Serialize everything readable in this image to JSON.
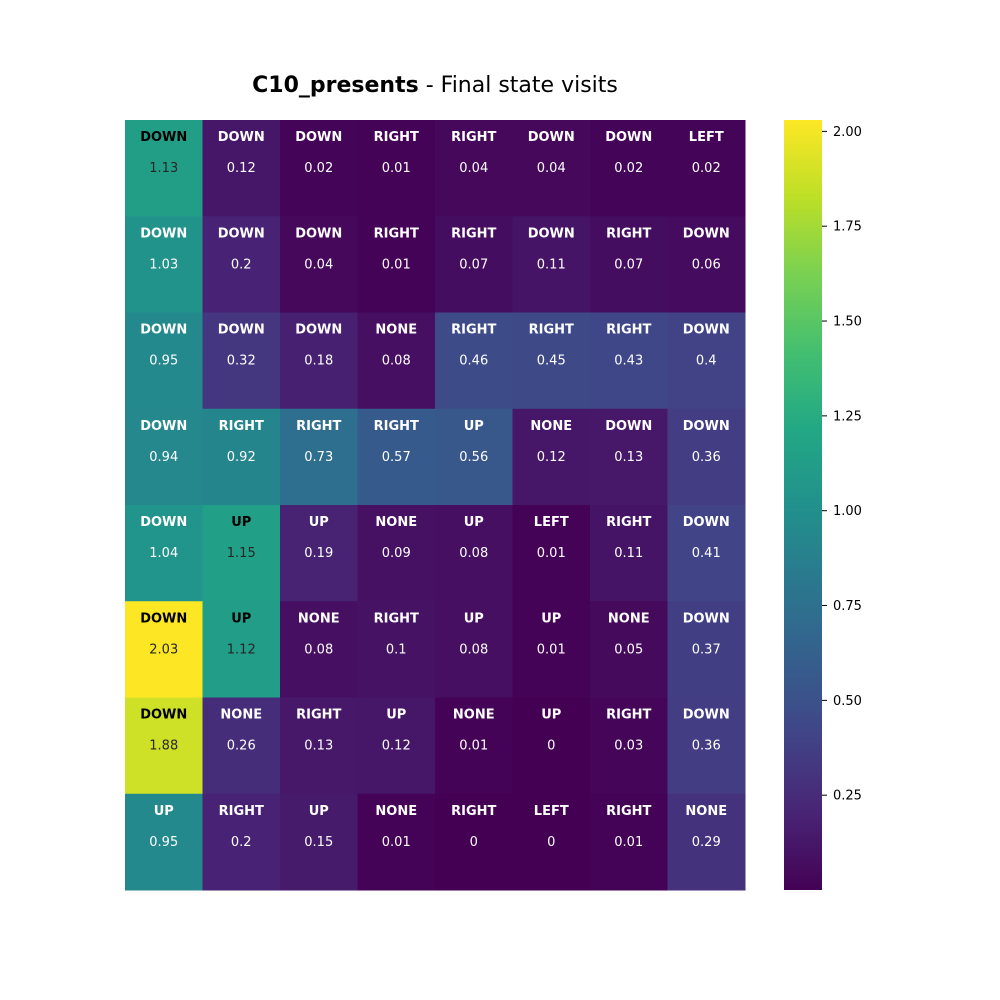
{
  "chart_data": {
    "type": "heatmap",
    "title_bold": "C10_presents",
    "title_rest": " - Final state visits",
    "rows": 8,
    "cols": 8,
    "values": [
      [
        1.13,
        0.12,
        0.02,
        0.01,
        0.04,
        0.04,
        0.02,
        0.02
      ],
      [
        1.03,
        0.2,
        0.04,
        0.01,
        0.07,
        0.11,
        0.07,
        0.06
      ],
      [
        0.95,
        0.32,
        0.18,
        0.08,
        0.46,
        0.45,
        0.43,
        0.4
      ],
      [
        0.94,
        0.92,
        0.73,
        0.57,
        0.56,
        0.12,
        0.13,
        0.36
      ],
      [
        1.04,
        1.15,
        0.19,
        0.09,
        0.08,
        0.01,
        0.11,
        0.41
      ],
      [
        2.03,
        1.12,
        0.08,
        0.1,
        0.08,
        0.01,
        0.05,
        0.37
      ],
      [
        1.88,
        0.26,
        0.13,
        0.12,
        0.01,
        0,
        0.03,
        0.36
      ],
      [
        0.95,
        0.2,
        0.15,
        0.01,
        0,
        0,
        0.01,
        0.29
      ]
    ],
    "actions": [
      [
        "DOWN",
        "DOWN",
        "DOWN",
        "RIGHT",
        "RIGHT",
        "DOWN",
        "DOWN",
        "LEFT"
      ],
      [
        "DOWN",
        "DOWN",
        "DOWN",
        "RIGHT",
        "RIGHT",
        "DOWN",
        "RIGHT",
        "DOWN"
      ],
      [
        "DOWN",
        "DOWN",
        "DOWN",
        "NONE",
        "RIGHT",
        "RIGHT",
        "RIGHT",
        "DOWN"
      ],
      [
        "DOWN",
        "RIGHT",
        "RIGHT",
        "RIGHT",
        "UP",
        "NONE",
        "DOWN",
        "DOWN"
      ],
      [
        "DOWN",
        "UP",
        "UP",
        "NONE",
        "UP",
        "LEFT",
        "RIGHT",
        "DOWN"
      ],
      [
        "DOWN",
        "UP",
        "NONE",
        "RIGHT",
        "UP",
        "UP",
        "NONE",
        "DOWN"
      ],
      [
        "DOWN",
        "NONE",
        "RIGHT",
        "UP",
        "NONE",
        "UP",
        "RIGHT",
        "DOWN"
      ],
      [
        "UP",
        "RIGHT",
        "UP",
        "NONE",
        "RIGHT",
        "LEFT",
        "RIGHT",
        "NONE"
      ]
    ],
    "colormap": "viridis",
    "vmin": 0,
    "vmax": 2.03,
    "colorbar_ticks": [
      0.25,
      0.5,
      0.75,
      1.0,
      1.25,
      1.5,
      1.75,
      2.0
    ],
    "colorbar_tick_labels": [
      "0.25",
      "0.50",
      "0.75",
      "1.00",
      "1.25",
      "1.50",
      "1.75",
      "2.00"
    ]
  }
}
